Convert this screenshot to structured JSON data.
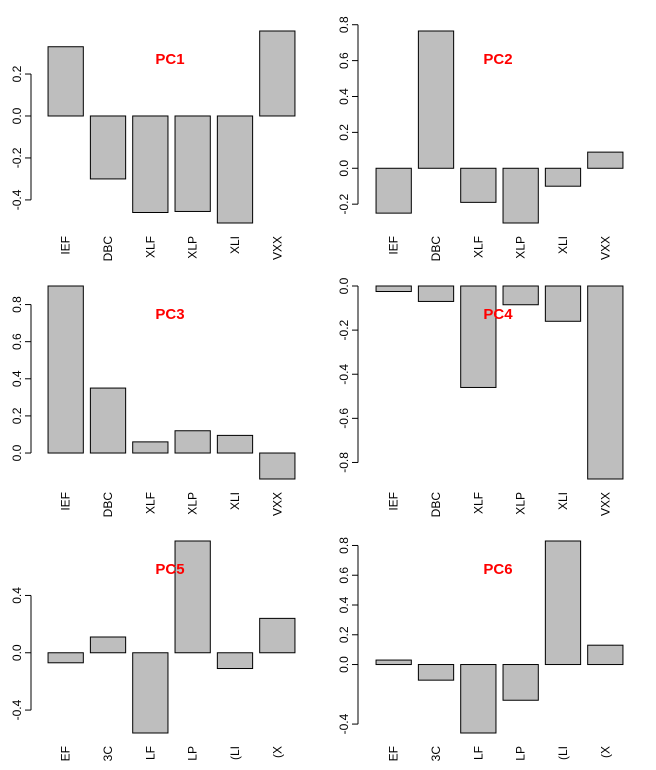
{
  "chart_data": [
    {
      "type": "bar",
      "title": "PC1",
      "categories": [
        "IEF",
        "DBC",
        "XLF",
        "XLP",
        "XLI",
        "VXX"
      ],
      "values": [
        0.33,
        -0.3,
        -0.46,
        -0.455,
        -0.51,
        0.405
      ],
      "ylim": [
        -0.51,
        0.405
      ],
      "yticks": [
        -0.4,
        -0.2,
        0.0,
        0.2
      ],
      "ytick_labels": [
        "-0.4",
        "-0.2",
        "0.0",
        "0.2"
      ],
      "xtick_labels": [
        "IEF",
        "DBC",
        "XLF",
        "XLP",
        "XLI",
        "VXX"
      ],
      "bar_color": "#bebebe",
      "title_color": "#ff0000"
    },
    {
      "type": "bar",
      "title": "PC2",
      "categories": [
        "IEF",
        "DBC",
        "XLF",
        "XLP",
        "XLI",
        "VXX"
      ],
      "values": [
        -0.25,
        0.765,
        -0.19,
        -0.305,
        -0.1,
        0.09
      ],
      "ylim": [
        -0.305,
        0.765
      ],
      "yticks": [
        -0.2,
        0.0,
        0.2,
        0.4,
        0.6,
        0.8
      ],
      "ytick_labels": [
        "-0.2",
        "0.0",
        "0.2",
        "0.4",
        "0.6",
        "0.8"
      ],
      "xtick_labels": [
        "IEF",
        "DBC",
        "XLF",
        "XLP",
        "XLI",
        "VXX"
      ],
      "bar_color": "#bebebe",
      "title_color": "#ff0000"
    },
    {
      "type": "bar",
      "title": "PC3",
      "categories": [
        "IEF",
        "DBC",
        "XLF",
        "XLP",
        "XLI",
        "VXX"
      ],
      "values": [
        0.9,
        0.35,
        0.06,
        0.12,
        0.095,
        -0.14
      ],
      "ylim": [
        -0.14,
        0.9
      ],
      "yticks": [
        0.0,
        0.2,
        0.4,
        0.6,
        0.8
      ],
      "ytick_labels": [
        "0.0",
        "0.2",
        "0.4",
        "0.6",
        "0.8"
      ],
      "xtick_labels": [
        "IEF",
        "DBC",
        "XLF",
        "XLP",
        "XLI",
        "VXX"
      ],
      "bar_color": "#bebebe",
      "title_color": "#ff0000"
    },
    {
      "type": "bar",
      "title": "PC4",
      "categories": [
        "IEF",
        "DBC",
        "XLF",
        "XLP",
        "XLI",
        "VXX"
      ],
      "values": [
        -0.025,
        -0.07,
        -0.46,
        -0.085,
        -0.16,
        -0.875
      ],
      "ylim": [
        -0.875,
        0.0
      ],
      "yticks": [
        -0.8,
        -0.6,
        -0.4,
        -0.2,
        0.0
      ],
      "ytick_labels": [
        "-0.8",
        "-0.6",
        "-0.4",
        "-0.2",
        "0.0"
      ],
      "xtick_labels": [
        "IEF",
        "DBC",
        "XLF",
        "XLP",
        "XLI",
        "VXX"
      ],
      "bar_color": "#bebebe",
      "title_color": "#ff0000"
    },
    {
      "type": "bar",
      "title": "PC5",
      "categories": [
        "IEF",
        "DBC",
        "XLF",
        "XLP",
        "XLI",
        "VXX"
      ],
      "values": [
        -0.07,
        0.11,
        -0.56,
        0.78,
        -0.11,
        0.24
      ],
      "ylim": [
        -0.56,
        0.78
      ],
      "yticks": [
        -0.4,
        0.0,
        0.4
      ],
      "ytick_labels": [
        "-0.4",
        "0.0",
        "0.4"
      ],
      "xtick_labels": [
        "EF",
        "3C",
        "LF",
        "LP",
        "(LI",
        "(X"
      ],
      "bar_color": "#bebebe",
      "title_color": "#ff0000"
    },
    {
      "type": "bar",
      "title": "PC6",
      "categories": [
        "IEF",
        "DBC",
        "XLF",
        "XLP",
        "XLI",
        "VXX"
      ],
      "values": [
        0.03,
        -0.105,
        -0.46,
        -0.24,
        0.83,
        0.13
      ],
      "ylim": [
        -0.46,
        0.83
      ],
      "yticks": [
        -0.4,
        0.0,
        0.2,
        0.4,
        0.6,
        0.8
      ],
      "ytick_labels": [
        "-0.4",
        "0.0",
        "0.2",
        "0.4",
        "0.6",
        "0.8"
      ],
      "xtick_labels": [
        "EF",
        "3C",
        "LF",
        "LP",
        "(LI",
        "(X"
      ],
      "bar_color": "#bebebe",
      "title_color": "#ff0000"
    }
  ]
}
